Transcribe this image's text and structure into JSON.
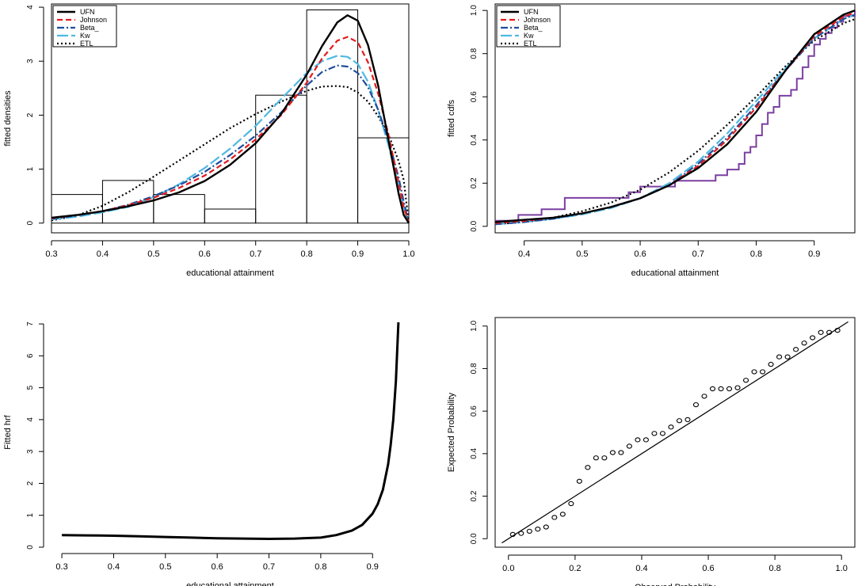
{
  "chart_data": [
    {
      "type": "histogram+line",
      "title": "",
      "xlabel": "educational attainment",
      "ylabel": "fitted densities",
      "xlim": [
        0.3,
        1.0
      ],
      "ylim": [
        0,
        4
      ],
      "xticks": [
        "0.3",
        "0.4",
        "0.5",
        "0.6",
        "0.7",
        "0.8",
        "0.9",
        "1.0"
      ],
      "yticks": [
        "0",
        "1",
        "2",
        "3",
        "4"
      ],
      "histogram": {
        "bins": [
          [
            0.3,
            0.4
          ],
          [
            0.4,
            0.5
          ],
          [
            0.5,
            0.6
          ],
          [
            0.6,
            0.7
          ],
          [
            0.7,
            0.8
          ],
          [
            0.8,
            0.9
          ],
          [
            0.9,
            1.0
          ]
        ],
        "heights": [
          0.53,
          0.79,
          0.53,
          0.26,
          2.37,
          3.95,
          1.58
        ]
      },
      "legend": [
        "UFN",
        "Johnson",
        "Beta_",
        "Kw",
        "ETL"
      ],
      "series": [
        {
          "name": "UFN",
          "color": "#000000",
          "dash": "",
          "width": 2.4,
          "x": [
            0.3,
            0.35,
            0.4,
            0.45,
            0.5,
            0.55,
            0.6,
            0.65,
            0.7,
            0.75,
            0.8,
            0.83,
            0.86,
            0.88,
            0.9,
            0.92,
            0.94,
            0.96,
            0.98,
            0.99,
            1.0
          ],
          "y": [
            0.1,
            0.15,
            0.22,
            0.31,
            0.42,
            0.57,
            0.78,
            1.08,
            1.48,
            2.02,
            2.75,
            3.28,
            3.72,
            3.85,
            3.75,
            3.3,
            2.55,
            1.55,
            0.55,
            0.15,
            0.0
          ]
        },
        {
          "name": "Johnson",
          "color": "#e31a1c",
          "dash": "7,4",
          "width": 2.2,
          "x": [
            0.3,
            0.35,
            0.4,
            0.45,
            0.5,
            0.55,
            0.6,
            0.65,
            0.7,
            0.75,
            0.8,
            0.83,
            0.86,
            0.88,
            0.9,
            0.92,
            0.94,
            0.96,
            0.98,
            0.99,
            1.0
          ],
          "y": [
            0.09,
            0.15,
            0.22,
            0.33,
            0.47,
            0.65,
            0.88,
            1.18,
            1.55,
            2.0,
            2.6,
            3.05,
            3.38,
            3.45,
            3.35,
            2.98,
            2.4,
            1.65,
            0.75,
            0.3,
            0.0
          ]
        },
        {
          "name": "Beta_",
          "color": "#1f4e9c",
          "dash": "9,3,2,3",
          "width": 2.2,
          "x": [
            0.3,
            0.35,
            0.4,
            0.45,
            0.5,
            0.55,
            0.6,
            0.65,
            0.7,
            0.75,
            0.8,
            0.83,
            0.86,
            0.88,
            0.9,
            0.92,
            0.94,
            0.96,
            0.98,
            0.99,
            1.0
          ],
          "y": [
            0.08,
            0.14,
            0.22,
            0.34,
            0.5,
            0.7,
            0.95,
            1.26,
            1.62,
            2.05,
            2.55,
            2.8,
            2.92,
            2.9,
            2.78,
            2.52,
            2.1,
            1.55,
            0.85,
            0.4,
            0.0
          ]
        },
        {
          "name": "Kw",
          "color": "#4fb8e0",
          "dash": "14,4",
          "width": 2.2,
          "x": [
            0.3,
            0.35,
            0.4,
            0.45,
            0.5,
            0.55,
            0.6,
            0.65,
            0.7,
            0.75,
            0.8,
            0.83,
            0.86,
            0.88,
            0.9,
            0.92,
            0.94,
            0.96,
            0.98,
            0.99,
            1.0
          ],
          "y": [
            0.07,
            0.12,
            0.2,
            0.3,
            0.48,
            0.72,
            1.02,
            1.38,
            1.8,
            2.3,
            2.78,
            3.0,
            3.1,
            3.08,
            2.95,
            2.62,
            2.1,
            1.45,
            0.7,
            0.3,
            0.0
          ]
        },
        {
          "name": "ETL",
          "color": "#000000",
          "dash": "2,3",
          "width": 2.2,
          "x": [
            0.3,
            0.35,
            0.4,
            0.45,
            0.5,
            0.55,
            0.6,
            0.65,
            0.7,
            0.75,
            0.8,
            0.83,
            0.86,
            0.88,
            0.9,
            0.92,
            0.94,
            0.96,
            0.98,
            0.99,
            1.0
          ],
          "y": [
            0.05,
            0.14,
            0.32,
            0.57,
            0.86,
            1.16,
            1.46,
            1.76,
            2.02,
            2.25,
            2.45,
            2.53,
            2.54,
            2.52,
            2.42,
            2.25,
            1.98,
            1.65,
            1.15,
            0.8,
            0.0
          ]
        }
      ]
    },
    {
      "type": "line",
      "title": "",
      "xlabel": "educational attainment",
      "ylabel": "fitted cdfs",
      "xlim": [
        0.35,
        0.97
      ],
      "ylim": [
        0,
        1.0
      ],
      "xticks": [
        "0.4",
        "0.5",
        "0.6",
        "0.7",
        "0.8",
        "0.9"
      ],
      "yticks": [
        "0.0",
        "0.2",
        "0.4",
        "0.6",
        "0.8",
        "1.0"
      ],
      "legend": [
        "UFN",
        "Johnson",
        "Beta_",
        "Kw",
        "ETL"
      ],
      "empirical": {
        "name": "empirical cdf",
        "color": "#7b3fa0",
        "x": [
          0.35,
          0.39,
          0.43,
          0.47,
          0.58,
          0.6,
          0.66,
          0.7,
          0.73,
          0.75,
          0.77,
          0.78,
          0.79,
          0.8,
          0.81,
          0.82,
          0.83,
          0.84,
          0.86,
          0.87,
          0.88,
          0.89,
          0.9,
          0.91,
          0.92,
          0.93,
          0.94,
          0.95,
          0.97
        ],
        "y": [
          0.026,
          0.053,
          0.079,
          0.132,
          0.158,
          0.184,
          0.211,
          0.211,
          0.237,
          0.263,
          0.289,
          0.342,
          0.368,
          0.421,
          0.474,
          0.526,
          0.553,
          0.605,
          0.632,
          0.684,
          0.737,
          0.789,
          0.842,
          0.868,
          0.895,
          0.921,
          0.947,
          0.974,
          1.0
        ]
      },
      "series": [
        {
          "name": "UFN",
          "color": "#000000",
          "dash": "",
          "width": 2.4,
          "x": [
            0.35,
            0.4,
            0.45,
            0.5,
            0.55,
            0.6,
            0.65,
            0.7,
            0.75,
            0.8,
            0.85,
            0.9,
            0.95,
            0.97
          ],
          "y": [
            0.02,
            0.03,
            0.04,
            0.06,
            0.09,
            0.13,
            0.19,
            0.27,
            0.38,
            0.53,
            0.72,
            0.89,
            0.98,
            1.0
          ]
        },
        {
          "name": "Johnson",
          "color": "#e31a1c",
          "dash": "7,4",
          "width": 2.2,
          "x": [
            0.35,
            0.4,
            0.45,
            0.5,
            0.55,
            0.6,
            0.65,
            0.7,
            0.75,
            0.8,
            0.85,
            0.9,
            0.95,
            0.97
          ],
          "y": [
            0.015,
            0.025,
            0.04,
            0.06,
            0.09,
            0.13,
            0.19,
            0.28,
            0.4,
            0.55,
            0.72,
            0.88,
            0.97,
            0.99
          ]
        },
        {
          "name": "Beta_",
          "color": "#1f4e9c",
          "dash": "9,3,2,3",
          "width": 2.2,
          "x": [
            0.35,
            0.4,
            0.45,
            0.5,
            0.55,
            0.6,
            0.65,
            0.7,
            0.75,
            0.8,
            0.85,
            0.9,
            0.95,
            0.97
          ],
          "y": [
            0.01,
            0.02,
            0.035,
            0.06,
            0.09,
            0.13,
            0.19,
            0.29,
            0.41,
            0.56,
            0.72,
            0.87,
            0.96,
            0.98
          ]
        },
        {
          "name": "Kw",
          "color": "#4fb8e0",
          "dash": "14,4",
          "width": 2.2,
          "x": [
            0.35,
            0.4,
            0.45,
            0.5,
            0.55,
            0.6,
            0.65,
            0.7,
            0.75,
            0.8,
            0.85,
            0.9,
            0.95,
            0.97
          ],
          "y": [
            0.01,
            0.02,
            0.035,
            0.055,
            0.085,
            0.13,
            0.2,
            0.3,
            0.43,
            0.58,
            0.73,
            0.87,
            0.96,
            0.98
          ]
        },
        {
          "name": "ETL",
          "color": "#000000",
          "dash": "2,3",
          "width": 2.2,
          "x": [
            0.35,
            0.4,
            0.45,
            0.5,
            0.55,
            0.6,
            0.65,
            0.7,
            0.75,
            0.8,
            0.85,
            0.9,
            0.95,
            0.97
          ],
          "y": [
            0.01,
            0.02,
            0.04,
            0.07,
            0.11,
            0.17,
            0.25,
            0.35,
            0.47,
            0.6,
            0.74,
            0.86,
            0.94,
            0.96
          ]
        }
      ]
    },
    {
      "type": "line",
      "title": "",
      "xlabel": "educational attainment",
      "ylabel": "Fitted hrf",
      "xlim": [
        0.3,
        0.95
      ],
      "ylim": [
        0,
        7
      ],
      "xticks": [
        "0.3",
        "0.4",
        "0.5",
        "0.6",
        "0.7",
        "0.8",
        "0.9"
      ],
      "yticks": [
        "0",
        "1",
        "2",
        "3",
        "4",
        "5",
        "6",
        "7"
      ],
      "series": [
        {
          "name": "hrf",
          "color": "#000000",
          "dash": "",
          "width": 3,
          "x": [
            0.3,
            0.35,
            0.4,
            0.45,
            0.5,
            0.55,
            0.6,
            0.65,
            0.7,
            0.75,
            0.8,
            0.83,
            0.86,
            0.88,
            0.9,
            0.91,
            0.92,
            0.93,
            0.935,
            0.94,
            0.945,
            0.95
          ],
          "y": [
            0.38,
            0.37,
            0.36,
            0.34,
            0.32,
            0.3,
            0.28,
            0.27,
            0.26,
            0.27,
            0.3,
            0.38,
            0.52,
            0.7,
            1.05,
            1.35,
            1.8,
            2.6,
            3.2,
            4.0,
            5.2,
            7.05
          ]
        }
      ]
    },
    {
      "type": "scatter",
      "title": "",
      "xlabel": "Observed Probability",
      "ylabel": "Expected Probability",
      "xlim": [
        0.0,
        1.0
      ],
      "ylim": [
        0.0,
        1.0
      ],
      "xticks": [
        "0.0",
        "0.2",
        "0.4",
        "0.6",
        "0.8",
        "1.0"
      ],
      "yticks": [
        "0.0",
        "0.2",
        "0.4",
        "0.6",
        "0.8",
        "1.0"
      ],
      "reference_line": {
        "x": [
          -0.02,
          1.02
        ],
        "y": [
          -0.02,
          1.02
        ]
      },
      "points": {
        "x": [
          0.013,
          0.038,
          0.063,
          0.088,
          0.113,
          0.138,
          0.163,
          0.188,
          0.213,
          0.238,
          0.263,
          0.288,
          0.313,
          0.338,
          0.363,
          0.388,
          0.413,
          0.438,
          0.463,
          0.488,
          0.513,
          0.538,
          0.563,
          0.588,
          0.613,
          0.638,
          0.663,
          0.688,
          0.713,
          0.738,
          0.763,
          0.788,
          0.813,
          0.838,
          0.863,
          0.888,
          0.913,
          0.938,
          0.963,
          0.988
        ],
        "y": [
          0.02,
          0.025,
          0.035,
          0.045,
          0.055,
          0.1,
          0.115,
          0.165,
          0.27,
          0.335,
          0.38,
          0.38,
          0.405,
          0.405,
          0.435,
          0.465,
          0.465,
          0.495,
          0.495,
          0.525,
          0.555,
          0.56,
          0.63,
          0.67,
          0.705,
          0.705,
          0.705,
          0.71,
          0.745,
          0.785,
          0.785,
          0.82,
          0.855,
          0.855,
          0.89,
          0.92,
          0.945,
          0.97,
          0.97,
          0.98
        ]
      }
    }
  ]
}
